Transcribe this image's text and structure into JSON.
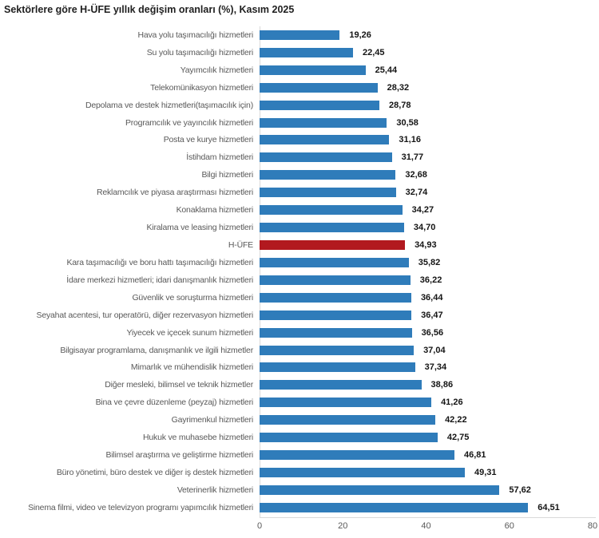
{
  "title": "Sektörlere göre H-ÜFE yıllık değişim oranları (%), Kasım 2025",
  "colors": {
    "bar": "#2f7cba",
    "highlight_bar": "#b2191f",
    "category_label": "#595959",
    "value_label": "#141414",
    "axis_line": "#d9d9d9",
    "tick_label": "#595959",
    "title_text": "#1f1f1f",
    "background": "#ffffff"
  },
  "chart_data": {
    "type": "bar",
    "orientation": "horizontal",
    "title": "Sektörlere göre H-ÜFE yıllık değişim oranları (%), Kasım 2025",
    "xlabel": "",
    "ylabel": "",
    "xlim": [
      0,
      80
    ],
    "xticks": [
      0,
      20,
      40,
      60,
      80
    ],
    "grid": false,
    "legend": "none",
    "decimal_separator": "comma",
    "highlight_index": 12,
    "highlight_category": "H-ÜFE",
    "categories": [
      "Hava yolu taşımacılığı hizmetleri",
      "Su yolu taşımacılığı hizmetleri",
      "Yayımcılık hizmetleri",
      "Telekomünikasyon hizmetleri",
      "Depolama ve destek hizmetleri(taşımacılık için)",
      "Programcılık ve yayıncılık hizmetleri",
      "Posta ve kurye hizmetleri",
      "İstihdam hizmetleri",
      "Bilgi hizmetleri",
      "Reklamcılık ve piyasa araştırması hizmetleri",
      "Konaklama hizmetleri",
      "Kiralama ve leasing hizmetleri",
      "H-ÜFE",
      "Kara taşımacılığı ve boru hattı taşımacılığı hizmetleri",
      "İdare merkezi hizmetleri; idari danışmanlık hizmetleri",
      "Güvenlik ve soruşturma hizmetleri",
      "Seyahat acentesi, tur operatörü, diğer rezervasyon hizmetleri",
      "Yiyecek ve içecek sunum hizmetleri",
      "Bilgisayar programlama, danışmanlık ve ilgili hizmetler",
      "Mimarlık ve mühendislik hizmetleri",
      "Diğer mesleki, bilimsel ve teknik hizmetler",
      "Bina ve çevre düzenleme (peyzaj) hizmetleri",
      "Gayrimenkul hizmetleri",
      "Hukuk ve muhasebe hizmetleri",
      "Bilimsel araştırma ve geliştirme hizmetleri",
      "Büro yönetimi, büro destek ve diğer iş destek hizmetleri",
      "Veterinerlik hizmetleri",
      "Sinema filmi, video ve televizyon programı yapımcılık hizmetleri"
    ],
    "values": [
      19.26,
      22.45,
      25.44,
      28.32,
      28.78,
      30.58,
      31.16,
      31.77,
      32.68,
      32.74,
      34.27,
      34.7,
      34.93,
      35.82,
      36.22,
      36.44,
      36.47,
      36.56,
      37.04,
      37.34,
      38.86,
      41.26,
      42.22,
      42.75,
      46.81,
      49.31,
      57.62,
      64.51
    ],
    "value_labels": [
      "19,26",
      "22,45",
      "25,44",
      "28,32",
      "28,78",
      "30,58",
      "31,16",
      "31,77",
      "32,68",
      "32,74",
      "34,27",
      "34,70",
      "34,93",
      "35,82",
      "36,22",
      "36,44",
      "36,47",
      "36,56",
      "37,04",
      "37,34",
      "38,86",
      "41,26",
      "42,22",
      "42,75",
      "46,81",
      "49,31",
      "57,62",
      "64,51"
    ]
  }
}
